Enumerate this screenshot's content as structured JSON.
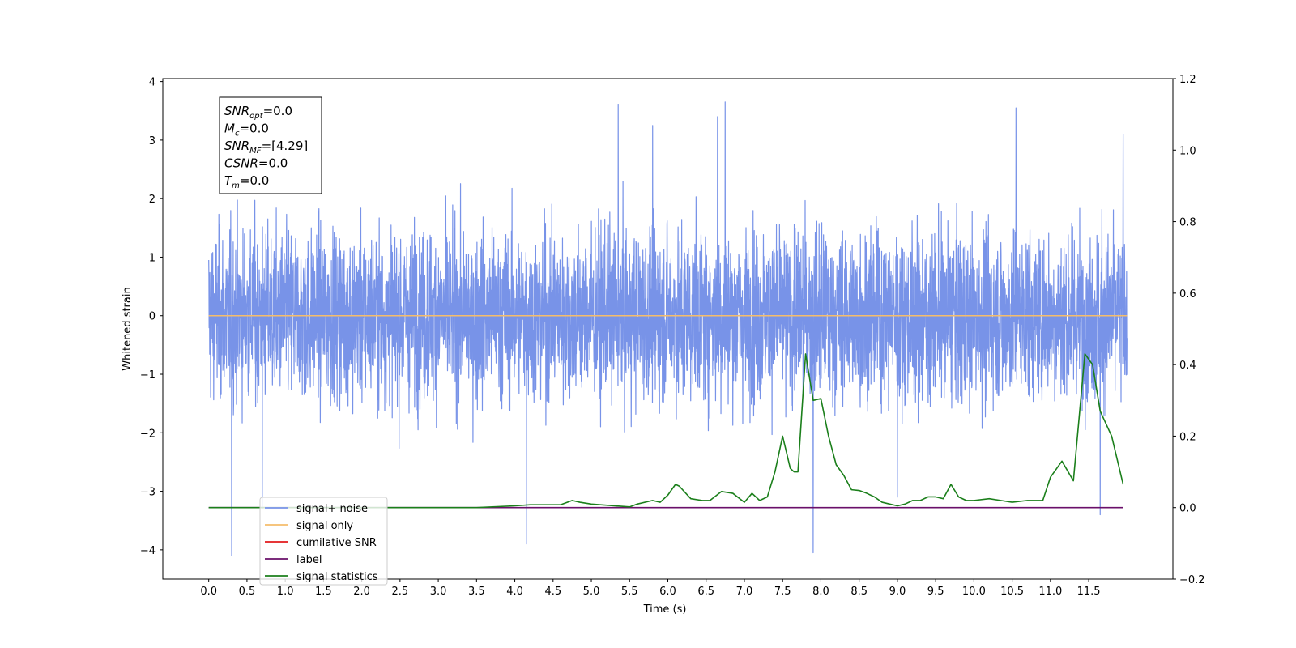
{
  "chart_data": {
    "type": "line",
    "title": "",
    "xlabel": "Time (s)",
    "ylabel": "Whitened strain",
    "xlim": [
      -0.6,
      12.6
    ],
    "ylim": [
      -4.5,
      4.05
    ],
    "y2lim": [
      -0.2,
      1.2
    ],
    "x_ticks": [
      0.0,
      0.5,
      1.0,
      1.5,
      2.0,
      2.5,
      3.0,
      3.5,
      4.0,
      4.5,
      5.0,
      5.5,
      6.0,
      6.5,
      7.0,
      7.5,
      8.0,
      8.5,
      9.0,
      9.5,
      10.0,
      10.5,
      11.0,
      11.5
    ],
    "x_tick_labels": [
      "0.0",
      "0.5",
      "1.0",
      "1.5",
      "2.0",
      "2.5",
      "3.0",
      "3.5",
      "4.0",
      "4.5",
      "5.0",
      "5.5",
      "6.0",
      "6.5",
      "7.0",
      "7.5",
      "8.0",
      "8.5",
      "9.0",
      "9.5",
      "10.0",
      "10.5",
      "11.0",
      "11.5"
    ],
    "y_ticks": [
      -4,
      -3,
      -2,
      -1,
      0,
      1,
      2,
      3,
      4
    ],
    "y_tick_labels": [
      "−4",
      "−3",
      "−2",
      "−1",
      "0",
      "1",
      "2",
      "3",
      "4"
    ],
    "y2_ticks": [
      -0.2,
      0.0,
      0.2,
      0.4,
      0.6,
      0.8,
      1.0,
      1.2
    ],
    "y2_tick_labels": [
      "−0.2",
      "0.0",
      "0.2",
      "0.4",
      "0.6",
      "0.8",
      "1.0",
      "1.2"
    ],
    "grid": false,
    "legend_position": "lower-left",
    "noise": {
      "x_start": 0.0,
      "x_end": 12.0,
      "typical_amplitude": 1.3,
      "spikes": [
        {
          "x": 0.3,
          "y": -4.1
        },
        {
          "x": 4.15,
          "y": -3.9
        },
        {
          "x": 7.9,
          "y": -4.05
        },
        {
          "x": 11.65,
          "y": -3.4
        },
        {
          "x": 5.35,
          "y": 3.6
        },
        {
          "x": 5.8,
          "y": 3.25
        },
        {
          "x": 6.75,
          "y": 3.65
        },
        {
          "x": 6.65,
          "y": 3.4
        },
        {
          "x": 10.55,
          "y": 3.55
        },
        {
          "x": 11.95,
          "y": 3.1
        },
        {
          "x": 0.7,
          "y": -3.3
        },
        {
          "x": 9.0,
          "y": -3.1
        }
      ]
    },
    "series": [
      {
        "name": "signal+ noise",
        "axis": "left",
        "color": "#7893e8",
        "kind": "noise"
      },
      {
        "name": "signal only",
        "axis": "left",
        "color": "#f5bd6b",
        "x": [
          0.0,
          12.0
        ],
        "y": [
          0.0,
          0.0
        ]
      },
      {
        "name": "cumilative SNR",
        "axis": "right",
        "color": "#e31a1c",
        "x": [],
        "y": []
      },
      {
        "name": "label",
        "axis": "right",
        "color": "#6a0f6a",
        "x": [
          0.0,
          11.95
        ],
        "y": [
          0.0,
          0.0
        ]
      },
      {
        "name": "signal statistics",
        "axis": "right",
        "color": "#1b7f1b",
        "x": [
          0.0,
          3.5,
          4.0,
          4.2,
          4.6,
          4.75,
          4.85,
          5.0,
          5.5,
          5.6,
          5.8,
          5.9,
          6.0,
          6.1,
          6.15,
          6.3,
          6.45,
          6.55,
          6.7,
          6.85,
          7.0,
          7.1,
          7.2,
          7.3,
          7.4,
          7.5,
          7.6,
          7.65,
          7.7,
          7.8,
          7.9,
          8.0,
          8.1,
          8.2,
          8.3,
          8.4,
          8.5,
          8.6,
          8.7,
          8.8,
          8.9,
          9.0,
          9.1,
          9.2,
          9.3,
          9.4,
          9.5,
          9.6,
          9.7,
          9.8,
          9.9,
          10.0,
          10.2,
          10.35,
          10.5,
          10.7,
          10.9,
          11.0,
          11.15,
          11.3,
          11.45,
          11.55,
          11.65,
          11.8,
          11.95
        ],
        "y": [
          0.0,
          0.0,
          0.005,
          0.008,
          0.008,
          0.02,
          0.015,
          0.01,
          0.002,
          0.01,
          0.02,
          0.015,
          0.035,
          0.065,
          0.06,
          0.025,
          0.02,
          0.02,
          0.045,
          0.04,
          0.015,
          0.04,
          0.02,
          0.03,
          0.1,
          0.2,
          0.11,
          0.1,
          0.1,
          0.43,
          0.3,
          0.305,
          0.2,
          0.12,
          0.09,
          0.05,
          0.048,
          0.04,
          0.03,
          0.015,
          0.01,
          0.005,
          0.01,
          0.02,
          0.02,
          0.03,
          0.03,
          0.025,
          0.065,
          0.03,
          0.02,
          0.02,
          0.025,
          0.02,
          0.015,
          0.02,
          0.02,
          0.085,
          0.13,
          0.075,
          0.43,
          0.4,
          0.27,
          0.2,
          0.065
        ]
      }
    ],
    "annotation_lines": [
      {
        "label": "SNR",
        "sub": "opt",
        "value": "=0.0"
      },
      {
        "label": "M",
        "sub": "c",
        "value": "=0.0"
      },
      {
        "label": "SNR",
        "sub": "MF",
        "value": "=[4.29]"
      },
      {
        "label": "CSNR",
        "sub": "",
        "value": "=0.0"
      },
      {
        "label": "T",
        "sub": "m",
        "value": "=0.0"
      }
    ]
  }
}
